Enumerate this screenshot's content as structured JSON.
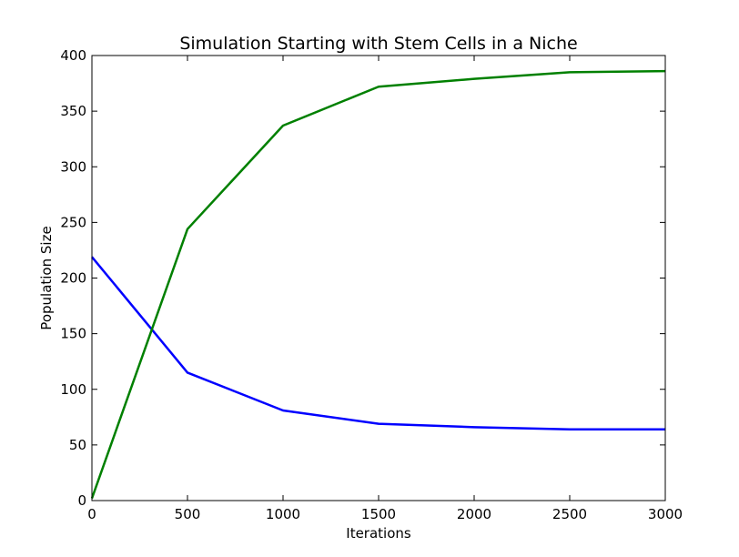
{
  "chart_data": {
    "type": "line",
    "title": "Simulation Starting with Stem Cells in a Niche",
    "xlabel": "Iterations",
    "ylabel": "Population Size",
    "xlim": [
      0,
      3000
    ],
    "ylim": [
      0,
      400
    ],
    "xticks": [
      0,
      500,
      1000,
      1500,
      2000,
      2500,
      3000
    ],
    "yticks": [
      0,
      50,
      100,
      150,
      200,
      250,
      300,
      350,
      400
    ],
    "grid": false,
    "legend": "none",
    "x": [
      0,
      500,
      1000,
      1500,
      2000,
      2500,
      3000
    ],
    "series": [
      {
        "color": "#0000ff",
        "values": [
          219,
          115,
          81,
          69,
          66,
          64,
          64
        ]
      },
      {
        "color": "#008000",
        "values": [
          2,
          244,
          337,
          372,
          379,
          385,
          386
        ]
      }
    ]
  }
}
